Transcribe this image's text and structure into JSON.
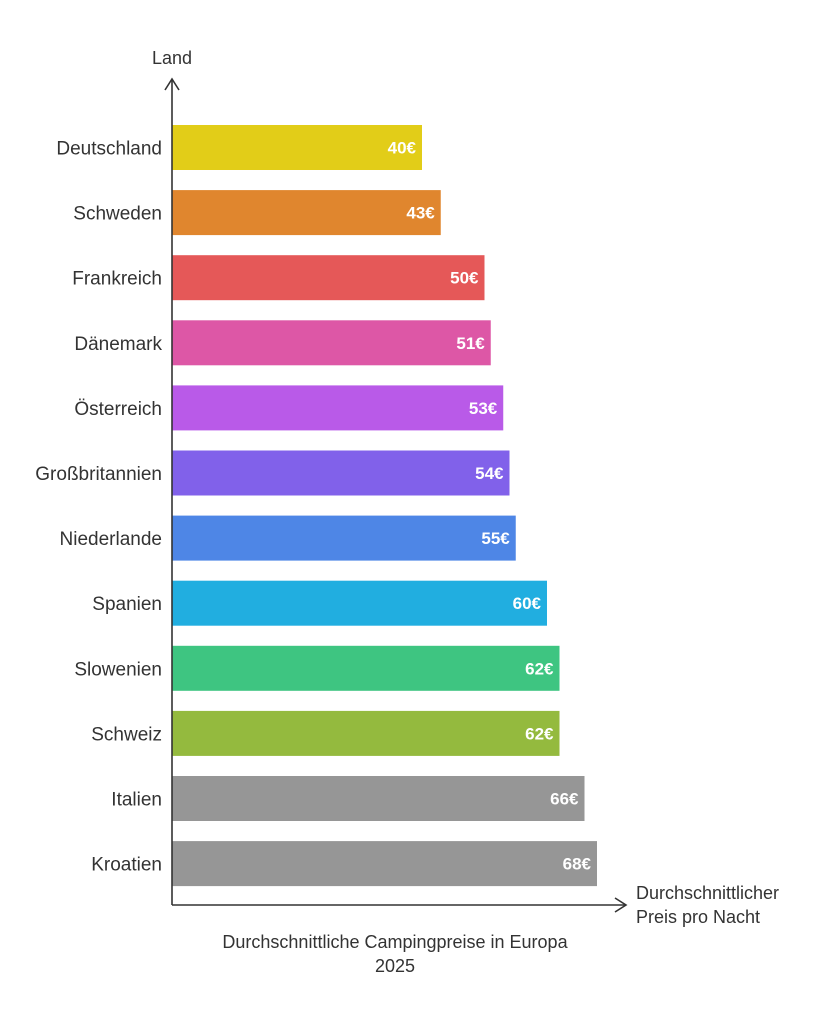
{
  "chart_data": {
    "type": "bar",
    "orientation": "horizontal",
    "y_axis_title": "Land",
    "x_axis_title_lines": [
      "Durchschnittlicher",
      "Preis pro Nacht"
    ],
    "caption_lines": [
      "Durchschnittliche Campingpreise in Europa",
      "2025"
    ],
    "value_suffix": "€",
    "xlim": [
      0,
      68
    ],
    "categories": [
      "Deutschland",
      "Schweden",
      "Frankreich",
      "Dänemark",
      "Österreich",
      "Großbritannien",
      "Niederlande",
      "Spanien",
      "Slowenien",
      "Schweiz",
      "Italien",
      "Kroatien"
    ],
    "values": [
      40,
      43,
      50,
      51,
      53,
      54,
      55,
      60,
      62,
      62,
      66,
      68
    ],
    "value_labels": [
      "40€",
      "43€",
      "50€",
      "51€",
      "53€",
      "54€",
      "55€",
      "60€",
      "62€",
      "62€",
      "66€",
      "68€"
    ],
    "colors": [
      "#e2cd18",
      "#e0862e",
      "#e55858",
      "#dd57a6",
      "#b95ae8",
      "#8161ea",
      "#4e86e6",
      "#21aee0",
      "#3ec581",
      "#94ba3e",
      "#969696",
      "#969696"
    ]
  }
}
